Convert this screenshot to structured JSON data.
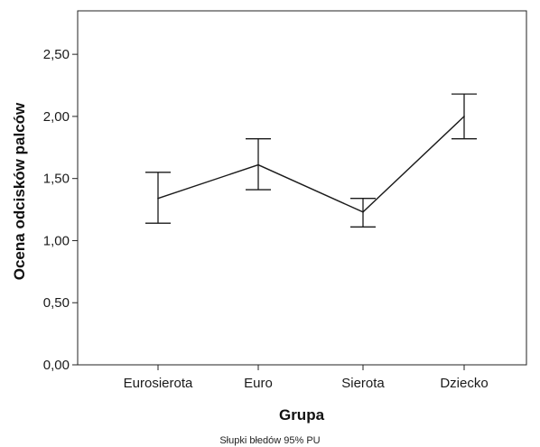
{
  "chart_data": {
    "type": "line",
    "categories": [
      "Eurosierota",
      "Euro",
      "Sierota",
      "Dziecko"
    ],
    "values": [
      1.34,
      1.61,
      1.23,
      2.0
    ],
    "error_bars": [
      {
        "lower": 1.14,
        "upper": 1.55
      },
      {
        "lower": 1.41,
        "upper": 1.82
      },
      {
        "lower": 1.11,
        "upper": 1.34
      },
      {
        "lower": 1.82,
        "upper": 2.18
      }
    ],
    "xlabel": "Grupa",
    "ylabel": "Ocena odcisków palców",
    "ylim": [
      0,
      2.85
    ],
    "y_ticks": [
      0,
      0.5,
      1.0,
      1.5,
      2.0,
      2.5
    ],
    "y_tick_labels": [
      "0,00",
      "0,50",
      "1,00",
      "1,50",
      "2,00",
      "2,50"
    ],
    "footnote": "Słupki błedów 95% PU",
    "grid": false,
    "line_color": "#1a1a1a"
  }
}
